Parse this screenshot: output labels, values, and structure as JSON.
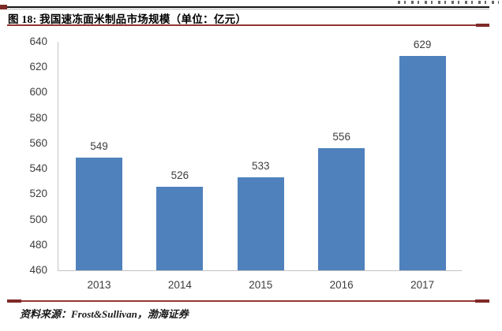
{
  "figure": {
    "title": "图 18: 我国速冻面米制品市场规模（单位：亿元）",
    "source": "资料来源：Frost&Sullivan，渤海证券"
  },
  "colors": {
    "bar_blue": "#4F81BD",
    "accent_red": "#943634",
    "accent_red_dark": "#7E2A27",
    "axis_gray": "#C3C3C3",
    "chart_text": "#3D3D3D"
  },
  "chart_data": {
    "type": "bar",
    "categories": [
      "2013",
      "2014",
      "2015",
      "2016",
      "2017"
    ],
    "values": [
      549,
      526,
      533,
      556,
      629
    ],
    "title": "我国速冻面米制品市场规模",
    "unit": "亿元",
    "xlabel": "",
    "ylabel": "",
    "ylim": [
      460,
      640
    ],
    "yticks": [
      640,
      620,
      600,
      580,
      560,
      540,
      520,
      500,
      480,
      460
    ],
    "grid": false,
    "legend": false,
    "data_labels": true
  }
}
